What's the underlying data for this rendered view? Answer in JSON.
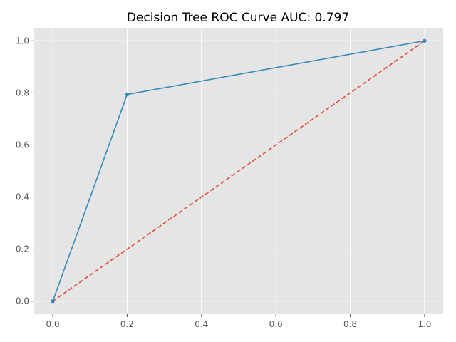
{
  "chart_data": {
    "type": "line",
    "title": "Decision Tree ROC Curve  AUC: 0.797",
    "xlabel": "",
    "ylabel": "",
    "xlim": [
      -0.05,
      1.05
    ],
    "ylim": [
      -0.05,
      1.05
    ],
    "xticks": [
      0.0,
      0.2,
      0.4,
      0.6,
      0.8,
      1.0
    ],
    "yticks": [
      0.0,
      0.2,
      0.4,
      0.6,
      0.8,
      1.0
    ],
    "tick_labels": {
      "x": [
        "0.0",
        "0.2",
        "0.4",
        "0.6",
        "0.8",
        "1.0"
      ],
      "y": [
        "0.0",
        "0.2",
        "0.4",
        "0.6",
        "0.8",
        "1.0"
      ]
    },
    "grid": true,
    "series": [
      {
        "name": "diagonal",
        "style": "dashed",
        "color": "#E24A33",
        "x": [
          0,
          1
        ],
        "y": [
          0,
          1
        ]
      },
      {
        "name": "roc",
        "style": "solid-markers",
        "color": "#348ABD",
        "x": [
          0.0,
          0.2,
          1.0
        ],
        "y": [
          0.0,
          0.794,
          1.0
        ]
      }
    ]
  },
  "colors": {
    "plot_background": "#E5E5E5",
    "grid": "#FFFFFF",
    "tick": "#555555"
  }
}
